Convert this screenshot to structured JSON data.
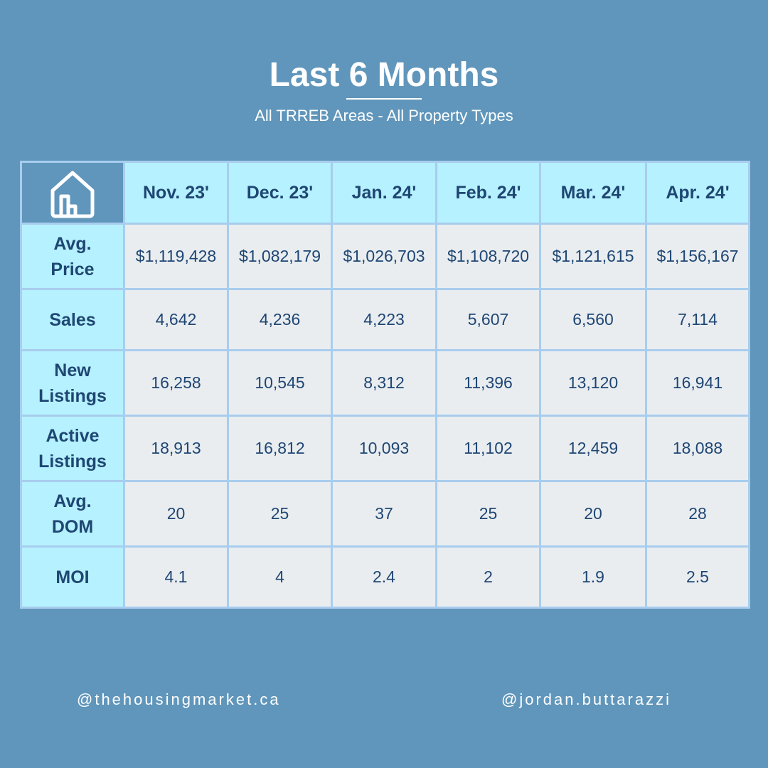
{
  "header": {
    "title": "Last 6 Months",
    "subtitle": "All TRREB Areas - All Property Types"
  },
  "table": {
    "corner_icon": "house-icon",
    "columns": [
      "Nov. 23'",
      "Dec. 23'",
      "Jan. 24'",
      "Feb. 24'",
      "Mar. 24'",
      "Apr. 24'"
    ],
    "rows": [
      {
        "label_line1": "Avg.",
        "label_line2": "Price",
        "values": [
          "$1,119,428",
          "$1,082,179",
          "$1,026,703",
          "$1,108,720",
          "$1,121,615",
          "$1,156,167"
        ]
      },
      {
        "label_line1": "Sales",
        "label_line2": "",
        "values": [
          "4,642",
          "4,236",
          "4,223",
          "5,607",
          "6,560",
          "7,114"
        ]
      },
      {
        "label_line1": "New",
        "label_line2": "Listings",
        "values": [
          "16,258",
          "10,545",
          "8,312",
          "11,396",
          "13,120",
          "16,941"
        ]
      },
      {
        "label_line1": "Active",
        "label_line2": "Listings",
        "values": [
          "18,913",
          "16,812",
          "10,093",
          "11,102",
          "12,459",
          "18,088"
        ]
      },
      {
        "label_line1": "Avg.",
        "label_line2": "DOM",
        "values": [
          "20",
          "25",
          "37",
          "25",
          "20",
          "28"
        ]
      },
      {
        "label_line1": "MOI",
        "label_line2": "",
        "values": [
          "4.1",
          "4",
          "2.4",
          "2",
          "1.9",
          "2.5"
        ]
      }
    ]
  },
  "footer": {
    "left_handle": "@thehousingmarket.ca",
    "right_handle": "@jordan.buttarazzi"
  },
  "colors": {
    "background": "#6096bb",
    "header_cell": "#b5f1fe",
    "data_cell": "#e9edf0",
    "text_dark": "#1f4673",
    "grid_line": "#a8cdee"
  }
}
